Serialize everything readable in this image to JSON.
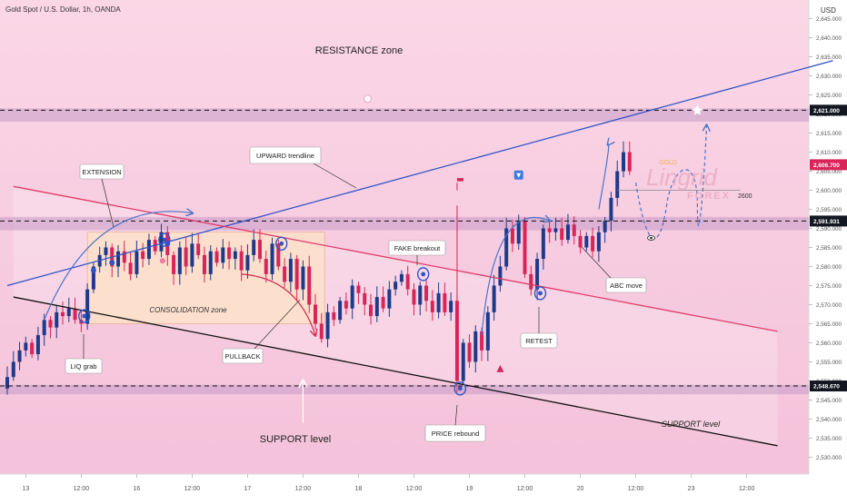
{
  "chart_data": {
    "type": "candlestick",
    "title": "Gold Spot / U.S. Dollar, 1h, OANDA",
    "currency": "USD",
    "ylim": [
      2527,
      2648
    ],
    "y_ticks": [
      2530,
      2535,
      2540,
      2545,
      2550,
      2555,
      2560,
      2565,
      2570,
      2575,
      2580,
      2585,
      2590,
      2595,
      2600,
      2605,
      2610,
      2615,
      2620,
      2625,
      2630,
      2635,
      2640,
      2645
    ],
    "y_tick_labels": [
      "2,530.000",
      "2,535.000",
      "2,540.000",
      "2,545.000",
      "2,550.000",
      "2,555.000",
      "2,560.000",
      "2,565.000",
      "2,570.000",
      "2,575.000",
      "2,580.000",
      "2,585.000",
      "2,590.000",
      "2,595.000",
      "2,600.000",
      "2,605.000",
      "2,610.000",
      "2,615.000",
      "2,620.000",
      "2,625.000",
      "2,630.000",
      "2,635.000",
      "2,640.000",
      "2,645.000"
    ],
    "x_ticks": [
      {
        "label": "13",
        "slot": 3
      },
      {
        "label": "12:00",
        "slot": 12
      },
      {
        "label": "16",
        "slot": 21
      },
      {
        "label": "12:00",
        "slot": 30
      },
      {
        "label": "17",
        "slot": 39
      },
      {
        "label": "12:00",
        "slot": 48
      },
      {
        "label": "18",
        "slot": 57
      },
      {
        "label": "12:00",
        "slot": 66
      },
      {
        "label": "19",
        "slot": 75
      },
      {
        "label": "12:00",
        "slot": 84
      },
      {
        "label": "20",
        "slot": 93
      },
      {
        "label": "12:00",
        "slot": 102
      },
      {
        "label": "23",
        "slot": 111
      },
      {
        "label": "12:00",
        "slot": 120
      }
    ],
    "price_labels": [
      {
        "value": 2621.0,
        "text": "2,621.000",
        "style": "dark"
      },
      {
        "value": 2606.7,
        "text": "2,606.700",
        "style": "red"
      },
      {
        "value": 2591.931,
        "text": "2,591.931",
        "style": "dark"
      },
      {
        "value": 2548.67,
        "text": "2,548.670",
        "style": "dark"
      }
    ],
    "closes": [
      2551,
      2555,
      2558,
      2560,
      2557,
      2562,
      2566,
      2564,
      2568,
      2567,
      2569,
      2566,
      2565,
      2574,
      2580,
      2583,
      2585,
      2580,
      2584,
      2581,
      2578,
      2584,
      2582,
      2587,
      2584,
      2589,
      2583,
      2578,
      2585,
      2580,
      2586,
      2583,
      2578,
      2584,
      2581,
      2585,
      2582,
      2584,
      2579,
      2583,
      2587,
      2582,
      2578,
      2586,
      2580,
      2576,
      2582,
      2574,
      2580,
      2570,
      2565,
      2561,
      2568,
      2566,
      2571,
      2569,
      2575,
      2573,
      2570,
      2567,
      2572,
      2569,
      2574,
      2576,
      2578,
      2574,
      2570,
      2575,
      2571,
      2568,
      2573,
      2568,
      2571,
      2550,
      2560,
      2555,
      2563,
      2558,
      2568,
      2575,
      2580,
      2590,
      2586,
      2592,
      2578,
      2574,
      2582,
      2590,
      2589,
      2590,
      2587,
      2591,
      2588,
      2585,
      2588,
      2584,
      2589,
      2592,
      2598,
      2605,
      2610,
      2605
    ],
    "boxes": [
      {
        "name": "resistance-zone",
        "y1": 2618,
        "y2": 2621.5
      },
      {
        "name": "mid-zone",
        "y1": 2589.5,
        "y2": 2593
      },
      {
        "name": "support-zone",
        "y1": 2546.5,
        "y2": 2549
      }
    ],
    "trendlines": [
      {
        "name": "upward-trendline",
        "from": [
          0,
          2575
        ],
        "to": [
          134,
          2634
        ],
        "color": "#2f54c8"
      },
      {
        "name": "channel-top",
        "from": [
          1,
          2601
        ],
        "to": [
          125,
          2563
        ],
        "color": "#e13b6a"
      },
      {
        "name": "channel-bottom",
        "from": [
          1,
          2572
        ],
        "to": [
          125,
          2533
        ],
        "color": "#111111"
      }
    ],
    "hlines": [
      {
        "value": 2621.0,
        "style": "dashed"
      },
      {
        "value": 2591.931,
        "style": "dashed"
      },
      {
        "value": 2548.67,
        "style": "dashed"
      },
      {
        "value": 2600,
        "style": "solid-gray",
        "label": "2600"
      }
    ],
    "annotations": {
      "resistance_zone": "RESISTANCE zone",
      "upward_trendline": "UPWARD trendline",
      "extension": "EXTENSION",
      "consolidation_zone": "CONSOLIDATION zone",
      "pullback": "PULLBACK",
      "liq_grab": "LIQ grab",
      "fake_breakout": "FAKE breakout",
      "price_rebound": "PRICE rebound",
      "retest": "RETEST",
      "abc_move": "ABC move",
      "support_level_right": "SUPPORT level",
      "support_level_bottom": "SUPPORT level",
      "level_2600": "2600"
    },
    "watermark": {
      "brand": "Lingrid",
      "sub": "FOREX",
      "tag": "GOLD"
    }
  }
}
